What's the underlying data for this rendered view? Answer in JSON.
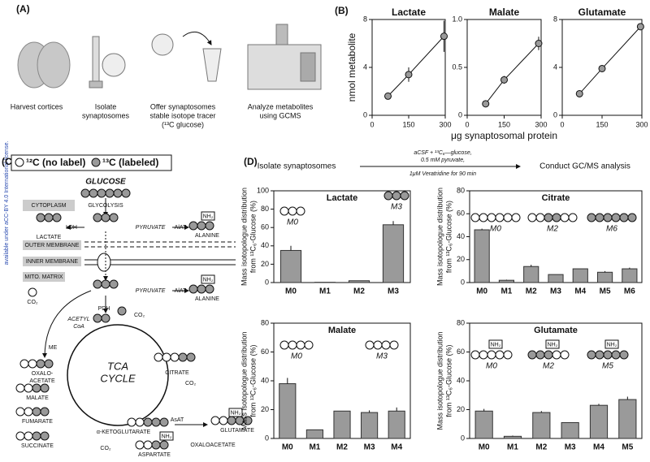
{
  "margin_note": "available under aCC-BY 4.0 International license.",
  "panel_a": {
    "label": "(A)",
    "steps": [
      [
        "Harvest cortices"
      ],
      [
        "Isolate",
        "synaptosomes"
      ],
      [
        "Offer synaptosomes",
        "stable isotope tracer",
        "(¹³C glucose)"
      ],
      [
        "Analyze metabolites",
        "using GCMS"
      ]
    ]
  },
  "panel_b": {
    "label": "(B)"
  },
  "panel_c": {
    "label": "(C)",
    "legend": [
      "¹²C (no label)",
      "¹³C (labeled)"
    ],
    "labels": [
      "GLUCOSE",
      "GLYCOLYSIS",
      "CYTOPLASM",
      "LDH",
      "LACTATE",
      "PYRUVATE",
      "AlAT",
      "ALANINE",
      "NH₂",
      "OUTER MEMBRANE",
      "INNER MEMBRANE",
      "MITO. MATRIX",
      "PYRUVATE",
      "AlAT",
      "ALANINE",
      "NH₂",
      "CO₂",
      "PDH",
      "CO₂",
      "ACETYL",
      "CoA",
      "ME",
      "OXALO-",
      "ACETATE",
      "MALATE",
      "FUMARATE",
      "SUCCINATE",
      "TCA",
      "CYCLE",
      "CITRATE",
      "CO₂",
      "α-KETOGLUTARATE",
      "CO₂",
      "AsAT",
      "GLUTAMATE",
      "NH₂",
      "ASPARTATE",
      "NH₂",
      "OXALOACETATE"
    ]
  },
  "panel_d": {
    "label": "(D)",
    "step_1": "Isolate synaptosomes",
    "conditions": [
      "aCSF + ¹³C₆—glucose,",
      "0.5 mM pyruvate,",
      "1μM Veratridine for 90 min"
    ],
    "step_2": "Conduct GC/MS analysis"
  },
  "chart_data": [
    {
      "type": "scatter",
      "title": "Lactate",
      "x": [
        65,
        150,
        295
      ],
      "values": [
        1.6,
        3.4,
        6.6
      ],
      "errors": [
        0.2,
        0.6,
        1.3
      ],
      "xlim": [
        0,
        300
      ],
      "xticks": [
        0,
        150,
        300
      ],
      "ylim": [
        0,
        8
      ],
      "yticks": [
        0,
        4,
        8
      ],
      "color": "#9a9a9a",
      "fit_line": true,
      "y_label": "nmol metabolite"
    },
    {
      "type": "scatter",
      "title": "Malate",
      "x": [
        75,
        150,
        290
      ],
      "values": [
        0.12,
        0.37,
        0.75
      ],
      "errors": [
        0.03,
        0.04,
        0.07
      ],
      "xlim": [
        0,
        300
      ],
      "xticks": [
        0,
        150,
        300
      ],
      "ylim": [
        0,
        1
      ],
      "yticks": [
        0,
        0.5,
        {
          "value": 1,
          "label": "1.0"
        }
      ],
      "color": "#9a9a9a",
      "fit_line": true,
      "x_label": "μg synaptosomal protein"
    },
    {
      "type": "scatter",
      "title": "Glutamate",
      "x": [
        65,
        150,
        295
      ],
      "values": [
        1.8,
        3.9,
        7.4
      ],
      "errors": [
        0.1,
        0.2,
        0.2
      ],
      "xlim": [
        0,
        300
      ],
      "xticks": [
        0,
        150,
        300
      ],
      "ylim": [
        0,
        8
      ],
      "yticks": [
        0,
        4,
        8
      ],
      "color": "#9a9a9a",
      "fit_line": true
    },
    {
      "type": "bar",
      "title": "Lactate",
      "categories": [
        "M0",
        "M1",
        "M2",
        "M3"
      ],
      "values": [
        35,
        0.3,
        2,
        63
      ],
      "errors": [
        5,
        0,
        0,
        4
      ],
      "ylim": [
        0,
        100
      ],
      "yticks": [
        0,
        20,
        40,
        60,
        80,
        100
      ],
      "color": "#9a9a9a",
      "y_label": [
        "Mass isotopologue distribution",
        "from ¹³C₆-Glucose (%)"
      ],
      "annotations": [
        "M0",
        "M3"
      ]
    },
    {
      "type": "bar",
      "title": "Citrate",
      "categories": [
        "M0",
        "M1",
        "M2",
        "M3",
        "M4",
        "M5",
        "M6"
      ],
      "values": [
        46,
        2,
        14,
        7,
        12,
        9,
        12
      ],
      "errors": [
        1,
        0.5,
        1.5,
        0,
        0,
        1,
        1
      ],
      "ylim": [
        0,
        80
      ],
      "yticks": [
        0,
        20,
        40,
        60,
        80
      ],
      "color": "#9a9a9a",
      "y_label": [
        "Mass isotopologue distribution",
        "from ¹³C₆-Glucose (%)"
      ],
      "annotations": [
        "M0",
        "M2",
        "M6"
      ]
    },
    {
      "type": "bar",
      "title": "Malate",
      "categories": [
        "M0",
        "M1",
        "M2",
        "M3",
        "M4"
      ],
      "values": [
        38,
        6,
        19,
        18,
        19
      ],
      "errors": [
        4,
        0,
        0,
        1.5,
        2.5
      ],
      "ylim": [
        0,
        80
      ],
      "yticks": [
        0,
        20,
        40,
        60,
        80
      ],
      "color": "#9a9a9a",
      "y_label": [
        "Mass isotopologue distribution",
        "from ¹³C₆-Glucose (%)"
      ],
      "annotations": [
        "M0",
        "M3"
      ]
    },
    {
      "type": "bar",
      "title": "Glutamate",
      "categories": [
        "M0",
        "M1",
        "M2",
        "M3",
        "M4",
        "M5"
      ],
      "values": [
        19,
        1.5,
        18,
        11,
        23,
        27
      ],
      "errors": [
        1.5,
        0.5,
        1,
        0,
        1,
        2
      ],
      "ylim": [
        0,
        80
      ],
      "yticks": [
        0,
        20,
        40,
        60,
        80
      ],
      "color": "#9a9a9a",
      "y_label": [
        "Mass isotopologue distribution",
        "from ¹³C₆-Glucose (%)"
      ],
      "annotations": [
        "M0",
        "M2",
        "M5"
      ],
      "tag": "NH₂"
    }
  ]
}
